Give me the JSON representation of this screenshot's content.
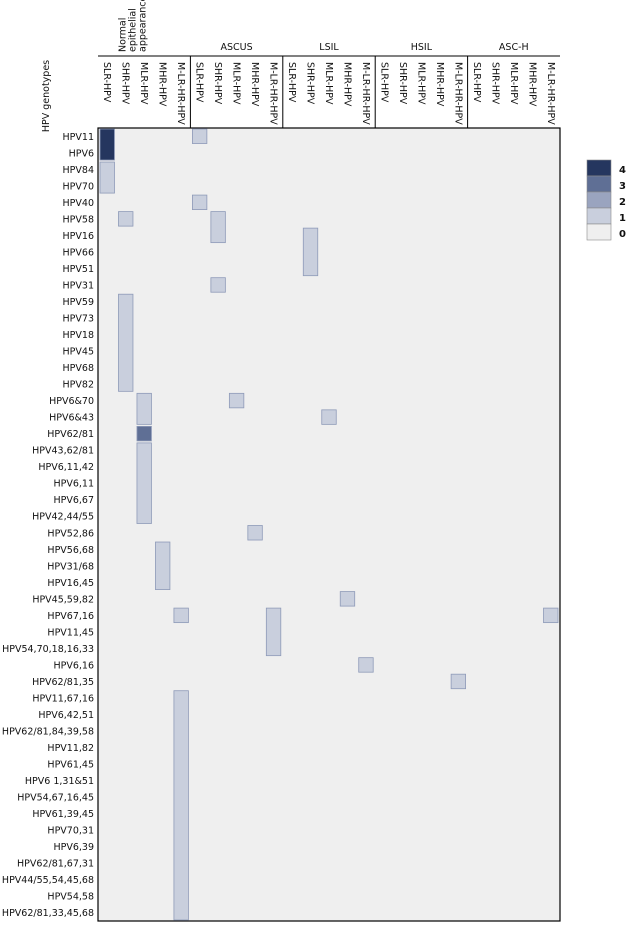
{
  "chart_data": {
    "type": "heatmap",
    "title": "",
    "ylabel": "HPV genotypes",
    "groups": [
      {
        "name": "Normal epithelial appearance",
        "name_lines": [
          "Normal",
          "epithelial",
          "appearance"
        ]
      },
      {
        "name": "ASCUS"
      },
      {
        "name": "LSIL"
      },
      {
        "name": "HSIL"
      },
      {
        "name": "ASC-H"
      }
    ],
    "subcategories": [
      "SLR-HPV",
      "SHR-HPV",
      "MLR-HPV",
      "MHR-HPV",
      "M-LR-HR-HPV"
    ],
    "rows": [
      "HPV11",
      "HPV6",
      "HPV84",
      "HPV70",
      "HPV40",
      "HPV58",
      "HPV16",
      "HPV66",
      "HPV51",
      "HPV31",
      "HPV59",
      "HPV73",
      "HPV18",
      "HPV45",
      "HPV68",
      "HPV82",
      "HPV6&70",
      "HPV6&43",
      "HPV62/81",
      "HPV43,62/81",
      "HPV6,11,42",
      "HPV6,11",
      "HPV6,67",
      "HPV42,44/55",
      "HPV52,86",
      "HPV56,68",
      "HPV31/68",
      "HPV16,45",
      "HPV45,59,82",
      "HPV67,16",
      "HPV11,45",
      "HPV54,70,18,16,33",
      "HPV6,16",
      "HPV62/81,35",
      "HPV11,67,16",
      "HPV6,42,51",
      "HPV62/81,84,39,58",
      "HPV11,82",
      "HPV61,45",
      "HPV6 1,31&51",
      "HPV54,67,16,45",
      "HPV61,39,45",
      "HPV70,31",
      "HPV6,39",
      "HPV62/81,67,31",
      "HPV44/55,54,45,68",
      "HPV54,58",
      "HPV62/81,33,45,68"
    ],
    "cells": [
      {
        "row": "HPV11",
        "group": "Normal epithelial appearance",
        "sub": "SLR-HPV",
        "value": 4
      },
      {
        "row": "HPV6",
        "group": "Normal epithelial appearance",
        "sub": "SLR-HPV",
        "value": 4
      },
      {
        "row": "HPV84",
        "group": "Normal epithelial appearance",
        "sub": "SLR-HPV",
        "value": 1
      },
      {
        "row": "HPV70",
        "group": "Normal epithelial appearance",
        "sub": "SLR-HPV",
        "value": 1
      },
      {
        "row": "HPV11",
        "group": "ASCUS",
        "sub": "SLR-HPV",
        "value": 1
      },
      {
        "row": "HPV40",
        "group": "ASCUS",
        "sub": "SLR-HPV",
        "value": 1
      },
      {
        "row": "HPV58",
        "group": "Normal epithelial appearance",
        "sub": "SHR-HPV",
        "value": 1
      },
      {
        "row": "HPV58",
        "group": "ASCUS",
        "sub": "SHR-HPV",
        "value": 1
      },
      {
        "row": "HPV16",
        "group": "ASCUS",
        "sub": "SHR-HPV",
        "value": 1
      },
      {
        "row": "HPV16",
        "group": "LSIL",
        "sub": "SHR-HPV",
        "value": 1
      },
      {
        "row": "HPV66",
        "group": "LSIL",
        "sub": "SHR-HPV",
        "value": 1
      },
      {
        "row": "HPV51",
        "group": "LSIL",
        "sub": "SHR-HPV",
        "value": 1
      },
      {
        "row": "HPV31",
        "group": "ASCUS",
        "sub": "SHR-HPV",
        "value": 1
      },
      {
        "row": "HPV59",
        "group": "Normal epithelial appearance",
        "sub": "SHR-HPV",
        "value": 1
      },
      {
        "row": "HPV73",
        "group": "Normal epithelial appearance",
        "sub": "SHR-HPV",
        "value": 1
      },
      {
        "row": "HPV18",
        "group": "Normal epithelial appearance",
        "sub": "SHR-HPV",
        "value": 1
      },
      {
        "row": "HPV45",
        "group": "Normal epithelial appearance",
        "sub": "SHR-HPV",
        "value": 1
      },
      {
        "row": "HPV68",
        "group": "Normal epithelial appearance",
        "sub": "SHR-HPV",
        "value": 1
      },
      {
        "row": "HPV82",
        "group": "Normal epithelial appearance",
        "sub": "SHR-HPV",
        "value": 1
      },
      {
        "row": "HPV6&70",
        "group": "Normal epithelial appearance",
        "sub": "MLR-HPV",
        "value": 1
      },
      {
        "row": "HPV6&70",
        "group": "ASCUS",
        "sub": "MLR-HPV",
        "value": 1
      },
      {
        "row": "HPV6&43",
        "group": "Normal epithelial appearance",
        "sub": "MLR-HPV",
        "value": 1
      },
      {
        "row": "HPV6&43",
        "group": "LSIL",
        "sub": "MLR-HPV",
        "value": 1
      },
      {
        "row": "HPV62/81",
        "group": "Normal epithelial appearance",
        "sub": "MLR-HPV",
        "value": 3
      },
      {
        "row": "HPV43,62/81",
        "group": "Normal epithelial appearance",
        "sub": "MLR-HPV",
        "value": 1
      },
      {
        "row": "HPV6,11,42",
        "group": "Normal epithelial appearance",
        "sub": "MLR-HPV",
        "value": 1
      },
      {
        "row": "HPV6,11",
        "group": "Normal epithelial appearance",
        "sub": "MLR-HPV",
        "value": 1
      },
      {
        "row": "HPV6,67",
        "group": "Normal epithelial appearance",
        "sub": "MLR-HPV",
        "value": 1
      },
      {
        "row": "HPV42,44/55",
        "group": "Normal epithelial appearance",
        "sub": "MLR-HPV",
        "value": 1
      },
      {
        "row": "HPV52,86",
        "group": "ASCUS",
        "sub": "MHR-HPV",
        "value": 1
      },
      {
        "row": "HPV56,68",
        "group": "Normal epithelial appearance",
        "sub": "MHR-HPV",
        "value": 1
      },
      {
        "row": "HPV31/68",
        "group": "Normal epithelial appearance",
        "sub": "MHR-HPV",
        "value": 1
      },
      {
        "row": "HPV16,45",
        "group": "Normal epithelial appearance",
        "sub": "MHR-HPV",
        "value": 1
      },
      {
        "row": "HPV45,59,82",
        "group": "LSIL",
        "sub": "MHR-HPV",
        "value": 1
      },
      {
        "row": "HPV67,16",
        "group": "Normal epithelial appearance",
        "sub": "M-LR-HR-HPV",
        "value": 1
      },
      {
        "row": "HPV67,16",
        "group": "ASCUS",
        "sub": "M-LR-HR-HPV",
        "value": 1
      },
      {
        "row": "HPV67,16",
        "group": "ASC-H",
        "sub": "M-LR-HR-HPV",
        "value": 1
      },
      {
        "row": "HPV11,45",
        "group": "ASCUS",
        "sub": "M-LR-HR-HPV",
        "value": 1
      },
      {
        "row": "HPV54,70,18,16,33",
        "group": "ASCUS",
        "sub": "M-LR-HR-HPV",
        "value": 1
      },
      {
        "row": "HPV6,16",
        "group": "LSIL",
        "sub": "M-LR-HR-HPV",
        "value": 1
      },
      {
        "row": "HPV62/81,35",
        "group": "HSIL",
        "sub": "M-LR-HR-HPV",
        "value": 1
      },
      {
        "row": "HPV11,67,16",
        "group": "Normal epithelial appearance",
        "sub": "M-LR-HR-HPV",
        "value": 1
      },
      {
        "row": "HPV6,42,51",
        "group": "Normal epithelial appearance",
        "sub": "M-LR-HR-HPV",
        "value": 1
      },
      {
        "row": "HPV62/81,84,39,58",
        "group": "Normal epithelial appearance",
        "sub": "M-LR-HR-HPV",
        "value": 1
      },
      {
        "row": "HPV11,82",
        "group": "Normal epithelial appearance",
        "sub": "M-LR-HR-HPV",
        "value": 1
      },
      {
        "row": "HPV61,45",
        "group": "Normal epithelial appearance",
        "sub": "M-LR-HR-HPV",
        "value": 1
      },
      {
        "row": "HPV6 1,31&51",
        "group": "Normal epithelial appearance",
        "sub": "M-LR-HR-HPV",
        "value": 1
      },
      {
        "row": "HPV54,67,16,45",
        "group": "Normal epithelial appearance",
        "sub": "M-LR-HR-HPV",
        "value": 1
      },
      {
        "row": "HPV61,39,45",
        "group": "Normal epithelial appearance",
        "sub": "M-LR-HR-HPV",
        "value": 1
      },
      {
        "row": "HPV70,31",
        "group": "Normal epithelial appearance",
        "sub": "M-LR-HR-HPV",
        "value": 1
      },
      {
        "row": "HPV6,39",
        "group": "Normal epithelial appearance",
        "sub": "M-LR-HR-HPV",
        "value": 1
      },
      {
        "row": "HPV62/81,67,31",
        "group": "Normal epithelial appearance",
        "sub": "M-LR-HR-HPV",
        "value": 1
      },
      {
        "row": "HPV44/55,54,45,68",
        "group": "Normal epithelial appearance",
        "sub": "M-LR-HR-HPV",
        "value": 1
      },
      {
        "row": "HPV54,58",
        "group": "Normal epithelial appearance",
        "sub": "M-LR-HR-HPV",
        "value": 1
      },
      {
        "row": "HPV62/81,33,45,68",
        "group": "Normal epithelial appearance",
        "sub": "M-LR-HR-HPV",
        "value": 1
      }
    ],
    "legend": {
      "position": "right",
      "levels": [
        {
          "label": "4",
          "value": 4,
          "color": "#25365f"
        },
        {
          "label": "3",
          "value": 3,
          "color": "#5f6f95"
        },
        {
          "label": "2",
          "value": 2,
          "color": "#9aa4bf"
        },
        {
          "label": "1",
          "value": 1,
          "color": "#c9cfdd"
        },
        {
          "label": "0",
          "value": 0,
          "color": "#efefef"
        }
      ]
    },
    "colors": {
      "background": "#efefef",
      "cell_border": "#8e9ab8",
      "frame": "#000000"
    }
  }
}
